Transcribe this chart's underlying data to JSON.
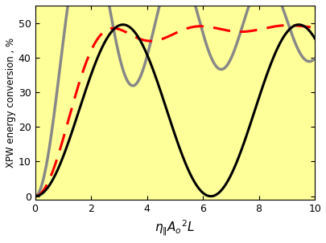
{
  "xlabel": "$\\eta_{\\|}A_o{}^{2}L$",
  "ylabel": "XPW energy conversion , %",
  "xlim": [
    0,
    10
  ],
  "ylim": [
    -1,
    55
  ],
  "yticks": [
    0,
    10,
    20,
    30,
    40,
    50
  ],
  "xticks": [
    0,
    2,
    4,
    6,
    8,
    10
  ],
  "bg_color": "#FFFF99",
  "black_color": "#000000",
  "gray_color": "#888888",
  "red_color": "#FF0000",
  "lw_black": 2.2,
  "lw_gray": 2.5,
  "lw_red": 2.2,
  "black_scale": 49.5,
  "figsize": [
    4.06,
    3.03
  ],
  "dpi": 100
}
